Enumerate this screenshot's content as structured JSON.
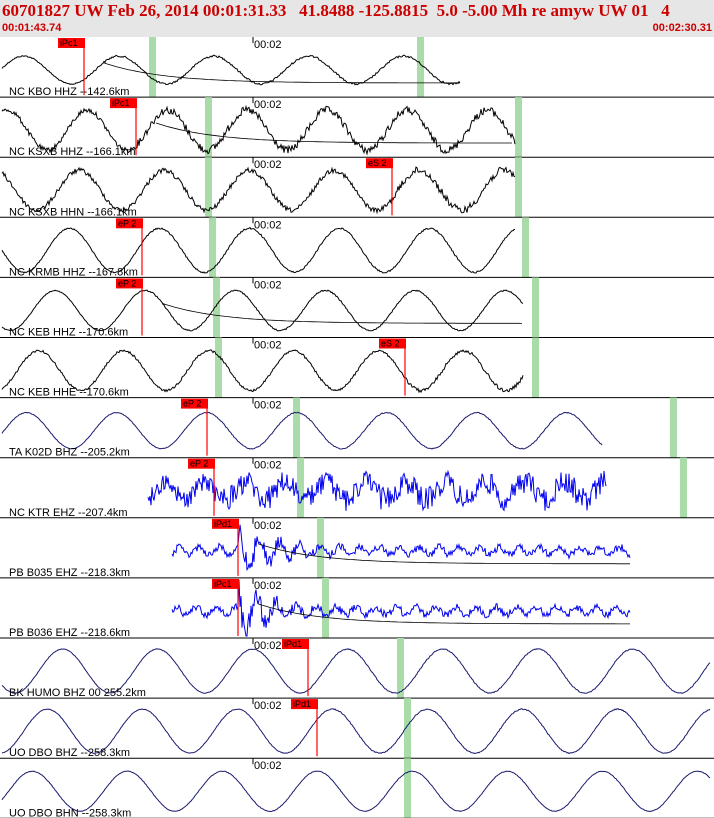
{
  "header": {
    "title": "60701827 UW Feb 26, 2014 00:01:31.33   41.8488 -125.8815  5.0 -5.00 Mh re amyw UW 01   4",
    "start_time": "00:01:43.74",
    "end_time": "00:02:30.31"
  },
  "time_label": "00:02",
  "colors": {
    "trace_black": "#000000",
    "trace_blue": "#0000ee",
    "pick_red": "#ff0000",
    "window_green": "#aadcaa",
    "header_bg": "#e6e6e6",
    "header_text": "#cc0000"
  },
  "traces": [
    {
      "label": "NC KBO HHZ --142.6km",
      "color": "black",
      "pick": "iPc1",
      "end": 460,
      "amp": 14,
      "period": 95,
      "noise": 0.6,
      "onset": 84,
      "greens": [
        152,
        420
      ],
      "tmark": 253,
      "coda": true
    },
    {
      "label": "NC KSXB HHZ --166.1km",
      "color": "black",
      "pick": "iPc1",
      "end": 515,
      "amp": 20,
      "period": 80,
      "noise": 2.4,
      "onset": 136,
      "greens": [
        208,
        518
      ],
      "tmark": 253,
      "coda": true
    },
    {
      "label": "NC KSXB HHN --166.1km",
      "color": "black",
      "pick": "eS 2",
      "end": 515,
      "amp": 20,
      "period": 85,
      "noise": 2.4,
      "onset": 392,
      "greens": [
        208,
        518
      ],
      "tmark": 253,
      "coda": false
    },
    {
      "label": "NC KRMB HHZ --167.8km",
      "color": "black",
      "pick": "eP 2",
      "end": 515,
      "amp": 22,
      "period": 90,
      "noise": 0.5,
      "onset": 142,
      "greens": [
        212,
        525
      ],
      "tmark": 253,
      "coda": false
    },
    {
      "label": "NC KEB HHZ --170.6km",
      "color": "black",
      "pick": "eP 2",
      "end": 523,
      "amp": 20,
      "period": 90,
      "noise": 0.4,
      "onset": 142,
      "greens": [
        216,
        535
      ],
      "tmark": 253,
      "coda": true
    },
    {
      "label": "NC KEB HHE --170.6km",
      "color": "black",
      "pick": "eS 2",
      "end": 523,
      "amp": 20,
      "period": 85,
      "noise": 1.1,
      "onset": 405,
      "greens": [
        218,
        535
      ],
      "tmark": 253,
      "coda": false
    },
    {
      "label": "TA K02D BHZ --205.2km",
      "color": "navy",
      "pick": "eP 2",
      "end": 602,
      "amp": 18,
      "period": 90,
      "noise": 0.3,
      "onset": 207,
      "greens": [
        296,
        673
      ],
      "tmark": 253,
      "coda": false
    },
    {
      "label": "NC KTR EHZ --207.4km",
      "color": "blue",
      "pick": "eP 2",
      "end": 606,
      "amp": 9,
      "period": 40,
      "noise": 9,
      "onset": 214,
      "greens": [
        300,
        683
      ],
      "tmark": 253,
      "coda": false
    },
    {
      "label": "PB B035 EHZ --218.3km",
      "color": "blue",
      "pick": "iPd1",
      "end": 630,
      "amp": 4,
      "period": 20,
      "noise": 3.5,
      "onset": 238,
      "greens": [
        320
      ],
      "tmark": 253,
      "coda": true
    },
    {
      "label": "PB B036 EHZ --218.6km",
      "color": "blue",
      "pick": "iPc1",
      "end": 630,
      "amp": 4,
      "period": 20,
      "noise": 3.5,
      "onset": 238,
      "greens": [
        325
      ],
      "tmark": 253,
      "coda": true
    },
    {
      "label": "BK HUMO BHZ 00 255.2km",
      "color": "navy",
      "pick": "iPd1",
      "end": 710,
      "amp": 22,
      "period": 95,
      "noise": 0.3,
      "onset": 308,
      "greens": [
        400
      ],
      "tmark": 253,
      "coda": false
    },
    {
      "label": "UO DBO BHZ --258.3km",
      "color": "navy",
      "pick": "iPd1",
      "end": 710,
      "amp": 22,
      "period": 95,
      "noise": 0.3,
      "onset": 317,
      "greens": [
        407
      ],
      "tmark": 253,
      "coda": false
    },
    {
      "label": "UO DBO BHN --258.3km",
      "color": "navy",
      "pick": "",
      "end": 710,
      "amp": 20,
      "period": 95,
      "noise": 0.3,
      "onset": 9999,
      "greens": [
        407
      ],
      "tmark": 253,
      "coda": false
    }
  ]
}
